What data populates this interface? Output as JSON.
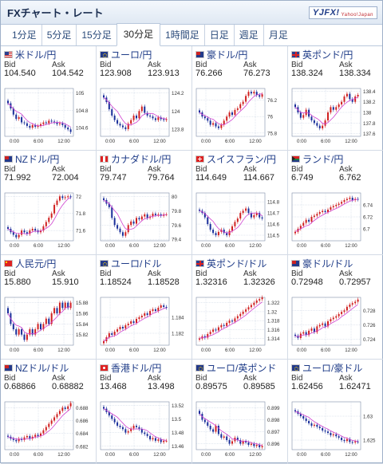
{
  "header": {
    "title": "FXチャート・レート",
    "logo_text": "YJFX!",
    "logo_sub": "Yahoo!Japan"
  },
  "tabs": [
    {
      "label": "1分足",
      "active": false
    },
    {
      "label": "5分足",
      "active": false
    },
    {
      "label": "15分足",
      "active": false
    },
    {
      "label": "30分足",
      "active": true
    },
    {
      "label": "1時間足",
      "active": false
    },
    {
      "label": "日足",
      "active": false
    },
    {
      "label": "週足",
      "active": false
    },
    {
      "label": "月足",
      "active": false
    }
  ],
  "labels": {
    "bid": "Bid",
    "ask": "Ask"
  },
  "x_ticks": [
    "0:00",
    "6:00",
    "12:00"
  ],
  "colors": {
    "up": "#d02020",
    "down": "#1a2f9a",
    "ma": "#d040d0",
    "grid": "#b8c4d8",
    "link": "#1f3c88"
  },
  "pairs": [
    {
      "name": "米ドル/円",
      "flag": "us",
      "bid": "104.540",
      "ask": "104.542",
      "y_ticks": [
        "105",
        "104.8",
        "104.6"
      ],
      "y_min": 104.5,
      "y_max": 105.05,
      "closes": [
        104.88,
        104.82,
        104.75,
        104.7,
        104.72,
        104.66,
        104.65,
        104.62,
        104.6,
        104.63,
        104.61,
        104.62,
        104.64,
        104.66,
        104.65,
        104.68,
        104.67,
        104.66,
        104.64,
        104.65,
        104.63,
        104.6,
        104.58,
        104.55
      ]
    },
    {
      "name": "ユーロ/円",
      "flag": "eu",
      "bid": "123.908",
      "ask": "123.913",
      "y_ticks": [
        "124.2",
        "124",
        "123.8"
      ],
      "y_min": 123.72,
      "y_max": 124.25,
      "closes": [
        124.15,
        124.1,
        124.02,
        123.95,
        123.9,
        123.86,
        123.84,
        123.82,
        123.8,
        123.86,
        123.9,
        123.95,
        123.92,
        124.0,
        124.05,
        123.98,
        123.95,
        123.94,
        123.92,
        123.9,
        123.93,
        123.91,
        123.9,
        123.91
      ]
    },
    {
      "name": "豪ドル/円",
      "flag": "au",
      "bid": "76.266",
      "ask": "76.273",
      "y_ticks": [
        "76.2",
        "76",
        "75.8"
      ],
      "y_min": 75.76,
      "y_max": 76.34,
      "closes": [
        76.05,
        76.0,
        75.98,
        75.95,
        75.9,
        75.92,
        75.88,
        75.86,
        75.9,
        75.95,
        76.0,
        76.05,
        76.02,
        76.08,
        76.1,
        76.15,
        76.18,
        76.25,
        76.3,
        76.28,
        76.3,
        76.26,
        76.24,
        76.27
      ]
    },
    {
      "name": "英ポンド/円",
      "flag": "gb",
      "bid": "138.324",
      "ask": "138.334",
      "y_ticks": [
        "138.4",
        "138.2",
        "138",
        "137.8",
        "137.6"
      ],
      "y_min": 137.55,
      "y_max": 138.45,
      "closes": [
        138.1,
        138.0,
        137.9,
        137.95,
        138.05,
        137.92,
        137.85,
        137.8,
        137.75,
        137.7,
        137.75,
        137.85,
        138.0,
        138.1,
        138.05,
        138.1,
        138.15,
        138.2,
        138.3,
        138.35,
        138.25,
        138.2,
        138.3,
        138.33
      ]
    },
    {
      "name": "NZドル/円",
      "flag": "nz",
      "bid": "71.992",
      "ask": "72.004",
      "y_ticks": [
        "72",
        "71.8",
        "71.6"
      ],
      "y_min": 71.48,
      "y_max": 72.04,
      "closes": [
        71.62,
        71.58,
        71.55,
        71.52,
        71.55,
        71.6,
        71.58,
        71.56,
        71.6,
        71.62,
        71.6,
        71.58,
        71.6,
        71.65,
        71.7,
        71.75,
        71.8,
        71.9,
        71.95,
        72.0,
        71.98,
        71.99,
        72.0,
        71.99
      ]
    },
    {
      "name": "カナダドル/円",
      "flag": "ca",
      "bid": "79.747",
      "ask": "79.764",
      "y_ticks": [
        "80",
        "79.8",
        "79.6",
        "79.4"
      ],
      "y_min": 79.38,
      "y_max": 80.05,
      "closes": [
        79.95,
        79.9,
        79.85,
        79.7,
        79.6,
        79.55,
        79.5,
        79.45,
        79.5,
        79.6,
        79.65,
        79.62,
        79.7,
        79.68,
        79.72,
        79.75,
        79.7,
        79.72,
        79.76,
        79.74,
        79.75,
        79.73,
        79.75,
        79.75
      ]
    },
    {
      "name": "スイスフラン/円",
      "flag": "ch",
      "bid": "114.649",
      "ask": "114.667",
      "y_ticks": [
        "114.8",
        "114.7",
        "114.6",
        "114.5"
      ],
      "y_min": 114.45,
      "y_max": 114.88,
      "closes": [
        114.72,
        114.7,
        114.66,
        114.6,
        114.55,
        114.52,
        114.5,
        114.53,
        114.55,
        114.52,
        114.5,
        114.54,
        114.58,
        114.62,
        114.65,
        114.7,
        114.72,
        114.74,
        114.7,
        114.66,
        114.68,
        114.7,
        114.66,
        114.65
      ]
    },
    {
      "name": "ランド/円",
      "flag": "za",
      "bid": "6.749",
      "ask": "6.762",
      "y_ticks": [
        "6.74",
        "6.72",
        "6.7"
      ],
      "y_min": 6.68,
      "y_max": 6.76,
      "closes": [
        6.695,
        6.7,
        6.705,
        6.71,
        6.715,
        6.712,
        6.72,
        6.722,
        6.725,
        6.728,
        6.73,
        6.728,
        6.732,
        6.736,
        6.738,
        6.74,
        6.742,
        6.745,
        6.748,
        6.75,
        6.752,
        6.748,
        6.75,
        6.749
      ]
    },
    {
      "name": "人民元/円",
      "flag": "cn",
      "bid": "15.880",
      "ask": "15.910",
      "y_ticks": [
        "15.88",
        "15.86",
        "15.84",
        "15.82"
      ],
      "y_min": 15.8,
      "y_max": 15.89,
      "closes": [
        15.86,
        15.84,
        15.83,
        15.82,
        15.83,
        15.82,
        15.81,
        15.82,
        15.83,
        15.82,
        15.83,
        15.84,
        15.83,
        15.84,
        15.85,
        15.84,
        15.86,
        15.87,
        15.86,
        15.88,
        15.87,
        15.88,
        15.87,
        15.88
      ]
    },
    {
      "name": "ユーロ/ドル",
      "flag": "eu",
      "bid": "1.18524",
      "ask": "1.18528",
      "y_ticks": [
        "1.184",
        "1.182"
      ],
      "y_min": 1.1805,
      "y_max": 1.1865,
      "closes": [
        1.181,
        1.1815,
        1.182,
        1.1818,
        1.1822,
        1.1825,
        1.1828,
        1.1826,
        1.183,
        1.1832,
        1.1835,
        1.1833,
        1.1838,
        1.184,
        1.1842,
        1.1845,
        1.1843,
        1.1848,
        1.185,
        1.1848,
        1.1852,
        1.1855,
        1.1853,
        1.1852
      ]
    },
    {
      "name": "英ポンド/ドル",
      "flag": "gb",
      "bid": "1.32316",
      "ask": "1.32326",
      "y_ticks": [
        "1.322",
        "1.32",
        "1.318",
        "1.316",
        "1.314"
      ],
      "y_min": 1.3125,
      "y_max": 1.3232,
      "closes": [
        1.314,
        1.3145,
        1.3142,
        1.315,
        1.3155,
        1.316,
        1.3158,
        1.3165,
        1.317,
        1.3168,
        1.3175,
        1.318,
        1.3178,
        1.3185,
        1.319,
        1.3195,
        1.32,
        1.3205,
        1.321,
        1.3215,
        1.322,
        1.3225,
        1.3228,
        1.3232
      ]
    },
    {
      "name": "豪ドル/ドル",
      "flag": "au",
      "bid": "0.72948",
      "ask": "0.72957",
      "y_ticks": [
        "0.728",
        "0.726",
        "0.724"
      ],
      "y_min": 0.7232,
      "y_max": 0.7298,
      "closes": [
        0.7245,
        0.7242,
        0.7248,
        0.725,
        0.7246,
        0.7252,
        0.7255,
        0.725,
        0.7258,
        0.726,
        0.7262,
        0.7258,
        0.7265,
        0.7268,
        0.727,
        0.7272,
        0.7275,
        0.7278,
        0.728,
        0.7285,
        0.7288,
        0.729,
        0.7292,
        0.7295
      ]
    },
    {
      "name": "NZドル/ドル",
      "flag": "nz",
      "bid": "0.68866",
      "ask": "0.68882",
      "y_ticks": [
        "0.688",
        "0.686",
        "0.684",
        "0.682"
      ],
      "y_min": 0.6815,
      "y_max": 0.6889,
      "closes": [
        0.6835,
        0.6832,
        0.683,
        0.6828,
        0.6832,
        0.683,
        0.6834,
        0.6836,
        0.6832,
        0.6835,
        0.6838,
        0.6836,
        0.684,
        0.6845,
        0.685,
        0.6855,
        0.686,
        0.6865,
        0.687,
        0.6875,
        0.688,
        0.6878,
        0.6882,
        0.6887
      ]
    },
    {
      "name": "香港ドル/円",
      "flag": "hk",
      "bid": "13.468",
      "ask": "13.498",
      "y_ticks": [
        "13.52",
        "13.5",
        "13.48",
        "13.46"
      ],
      "y_min": 13.455,
      "y_max": 13.525,
      "closes": [
        13.515,
        13.51,
        13.505,
        13.5,
        13.495,
        13.49,
        13.488,
        13.485,
        13.48,
        13.482,
        13.486,
        13.49,
        13.488,
        13.485,
        13.48,
        13.478,
        13.475,
        13.47,
        13.472,
        13.468,
        13.47,
        13.466,
        13.468,
        13.468
      ]
    },
    {
      "name": "ユーロ/英ポンド",
      "flag": "eu",
      "bid": "0.89575",
      "ask": "0.89585",
      "y_ticks": [
        "0.899",
        "0.898",
        "0.897",
        "0.896"
      ],
      "y_min": 0.8955,
      "y_max": 0.8995,
      "closes": [
        0.8985,
        0.898,
        0.8978,
        0.8975,
        0.8972,
        0.897,
        0.8975,
        0.8968,
        0.8965,
        0.8966,
        0.8963,
        0.896,
        0.8962,
        0.8965,
        0.8963,
        0.896,
        0.8962,
        0.8961,
        0.8959,
        0.896,
        0.8958,
        0.8959,
        0.8957,
        0.8958
      ]
    },
    {
      "name": "ユーロ/豪ドル",
      "flag": "eu",
      "bid": "1.62456",
      "ask": "1.62471",
      "y_ticks": [
        "1.63",
        "1.625"
      ],
      "y_min": 1.623,
      "y_max": 1.633,
      "closes": [
        1.631,
        1.6305,
        1.63,
        1.6295,
        1.629,
        1.6285,
        1.628,
        1.6282,
        1.6278,
        1.6275,
        1.627,
        1.6268,
        1.6265,
        1.626,
        1.6262,
        1.6258,
        1.6255,
        1.625,
        1.6248,
        1.6252,
        1.6246,
        1.6245,
        1.6247,
        1.6246
      ]
    }
  ]
}
